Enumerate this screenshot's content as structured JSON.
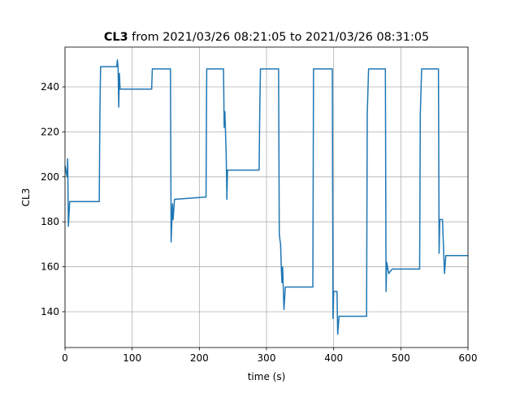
{
  "chart_data": {
    "type": "line",
    "title": [
      "CL3",
      "from 2021/03/26 08:21:05 to 2021/03/26 08:31:05"
    ],
    "xlabel": "time (s)",
    "ylabel": "CL3",
    "x": [
      0,
      3,
      4,
      5,
      7,
      51,
      52,
      53,
      77,
      78,
      79,
      80,
      81,
      82,
      129,
      130,
      157,
      158,
      160,
      161,
      163,
      208,
      210,
      211,
      236,
      237,
      238,
      240,
      241,
      242,
      244,
      289,
      290,
      291,
      318,
      319,
      320,
      321,
      322,
      323,
      324,
      326,
      328,
      369,
      370,
      398,
      399,
      400,
      405,
      406,
      408,
      449,
      450,
      452,
      477,
      478,
      479,
      482,
      487,
      528,
      529,
      531,
      556,
      557,
      558,
      562,
      565,
      567,
      600
    ],
    "values": [
      205,
      200,
      208,
      178,
      189,
      189,
      230,
      249,
      249,
      252,
      249,
      231,
      246,
      239,
      239,
      248,
      248,
      171,
      188,
      181,
      190,
      191,
      191,
      248,
      248,
      222,
      229,
      210,
      190,
      203,
      203,
      203,
      230,
      248,
      248,
      175,
      172,
      170,
      160,
      153,
      160,
      141,
      151,
      151,
      248,
      248,
      137,
      149,
      149,
      130,
      138,
      138,
      228,
      248,
      248,
      149,
      162,
      157,
      159,
      159,
      228,
      248,
      248,
      166,
      181,
      181,
      157,
      165,
      165
    ],
    "color": "#1f77b4",
    "xlim": [
      0,
      600
    ],
    "xticks": [
      0,
      100,
      200,
      300,
      400,
      500,
      600
    ],
    "ylim": [
      124.1,
      257.7
    ],
    "yticks": [
      140,
      160,
      180,
      200,
      220,
      240
    ],
    "grid": true
  }
}
